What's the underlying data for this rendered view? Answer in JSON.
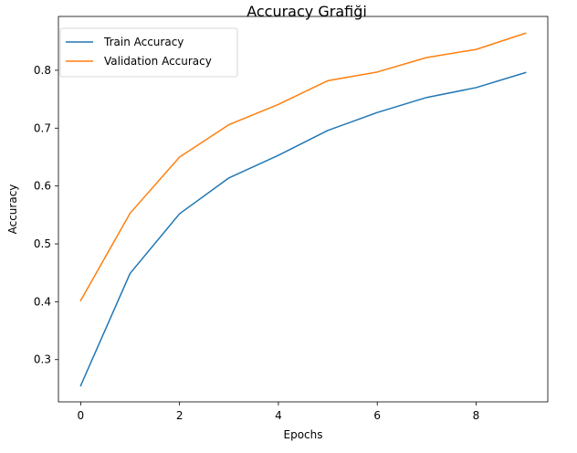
{
  "chart_data": {
    "type": "line",
    "title": "Accuracy Grafiği",
    "xlabel": "Epochs",
    "ylabel": "Accuracy",
    "x": [
      0,
      1,
      2,
      3,
      4,
      5,
      6,
      7,
      8,
      9
    ],
    "xlim": [
      -0.45,
      9.45
    ],
    "ylim": [
      0.227,
      0.893
    ],
    "xticks": [
      0,
      2,
      4,
      6,
      8
    ],
    "yticks": [
      0.3,
      0.4,
      0.5,
      0.6,
      0.7,
      0.8
    ],
    "xtick_labels": [
      "0",
      "2",
      "4",
      "6",
      "8"
    ],
    "ytick_labels": [
      "0.3",
      "0.4",
      "0.5",
      "0.6",
      "0.7",
      "0.8"
    ],
    "grid": false,
    "legend_position": "top-left",
    "series": [
      {
        "name": "Train Accuracy",
        "color": "#1f77b4",
        "values": [
          0.255,
          0.449,
          0.552,
          0.614,
          0.653,
          0.696,
          0.727,
          0.753,
          0.77,
          0.796
        ]
      },
      {
        "name": "Validation Accuracy",
        "color": "#ff7f0e",
        "values": [
          0.402,
          0.553,
          0.65,
          0.706,
          0.741,
          0.782,
          0.797,
          0.822,
          0.836,
          0.864
        ]
      }
    ]
  }
}
